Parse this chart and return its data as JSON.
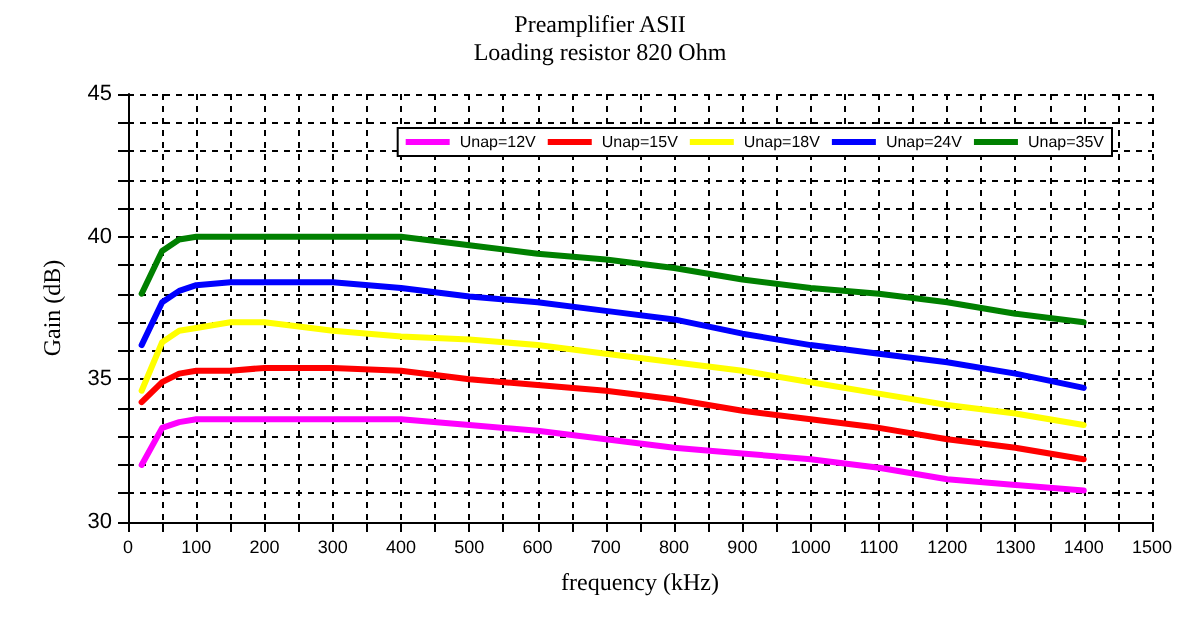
{
  "chart_data": {
    "type": "line",
    "title": "Preamplifier ASII",
    "subtitle": "Loading resistor 820 Ohm",
    "xlabel": "frequency (kHz)",
    "ylabel": "Gain (dB)",
    "x": [
      20,
      50,
      75,
      100,
      150,
      200,
      300,
      400,
      500,
      600,
      700,
      800,
      900,
      1000,
      1100,
      1200,
      1300,
      1400
    ],
    "series": [
      {
        "name": "Unap=12V",
        "color": "#ff00ff",
        "values": [
          32.0,
          33.3,
          33.5,
          33.6,
          33.6,
          33.6,
          33.6,
          33.6,
          33.4,
          33.2,
          32.9,
          32.6,
          32.4,
          32.2,
          31.9,
          31.5,
          31.3,
          31.1
        ]
      },
      {
        "name": "Unap=15V",
        "color": "#ff0000",
        "values": [
          34.2,
          34.9,
          35.2,
          35.3,
          35.3,
          35.4,
          35.4,
          35.3,
          35.0,
          34.8,
          34.6,
          34.3,
          33.9,
          33.6,
          33.3,
          32.9,
          32.6,
          32.2
        ]
      },
      {
        "name": "Unap=18V",
        "color": "#ffff00",
        "values": [
          34.6,
          36.3,
          36.7,
          36.8,
          37.0,
          37.0,
          36.7,
          36.5,
          36.4,
          36.2,
          35.9,
          35.6,
          35.3,
          34.9,
          34.5,
          34.1,
          33.8,
          33.4
        ]
      },
      {
        "name": "Unap=24V",
        "color": "#0000ff",
        "values": [
          36.2,
          37.7,
          38.1,
          38.3,
          38.4,
          38.4,
          38.4,
          38.2,
          37.9,
          37.7,
          37.4,
          37.1,
          36.6,
          36.2,
          35.9,
          35.6,
          35.2,
          34.7
        ]
      },
      {
        "name": "Unap=35V",
        "color": "#008000",
        "values": [
          38.0,
          39.5,
          39.9,
          40.0,
          40.0,
          40.0,
          40.0,
          40.0,
          39.7,
          39.4,
          39.2,
          38.9,
          38.5,
          38.2,
          38.0,
          37.7,
          37.3,
          37.0
        ]
      }
    ],
    "xlim": [
      0,
      1500
    ],
    "xticks": [
      0,
      {
        "value": 50,
        "label": null
      },
      100,
      {
        "value": 150,
        "label": null
      },
      200,
      {
        "value": 250,
        "label": null
      },
      300,
      {
        "value": 350,
        "label": null
      },
      400,
      {
        "value": 450,
        "label": null
      },
      500,
      {
        "value": 550,
        "label": null
      },
      600,
      {
        "value": 650,
        "label": null
      },
      700,
      {
        "value": 750,
        "label": null
      },
      800,
      {
        "value": 850,
        "label": null
      },
      900,
      {
        "value": 950,
        "label": null
      },
      1000,
      {
        "value": 1050,
        "label": null
      },
      1100,
      {
        "value": 1150,
        "label": null
      },
      1200,
      {
        "value": 1250,
        "label": null
      },
      1300,
      {
        "value": 1350,
        "label": null
      },
      1400,
      {
        "value": 1450,
        "label": null
      },
      1500
    ],
    "ylim": [
      30,
      45
    ],
    "yticks": [
      30,
      {
        "value": 31,
        "label": null
      },
      {
        "value": 32,
        "label": null
      },
      {
        "value": 33,
        "label": null
      },
      {
        "value": 34,
        "label": null
      },
      35,
      {
        "value": 36,
        "label": null
      },
      {
        "value": 37,
        "label": null
      },
      {
        "value": 38,
        "label": null
      },
      {
        "value": 39,
        "label": null
      },
      40,
      {
        "value": 41,
        "label": null
      },
      {
        "value": 42,
        "label": null
      },
      {
        "value": 43,
        "label": null
      },
      {
        "value": 44,
        "label": null
      },
      45
    ],
    "grid": true,
    "legend": "top right",
    "marker": "none",
    "line_style": "solid"
  }
}
